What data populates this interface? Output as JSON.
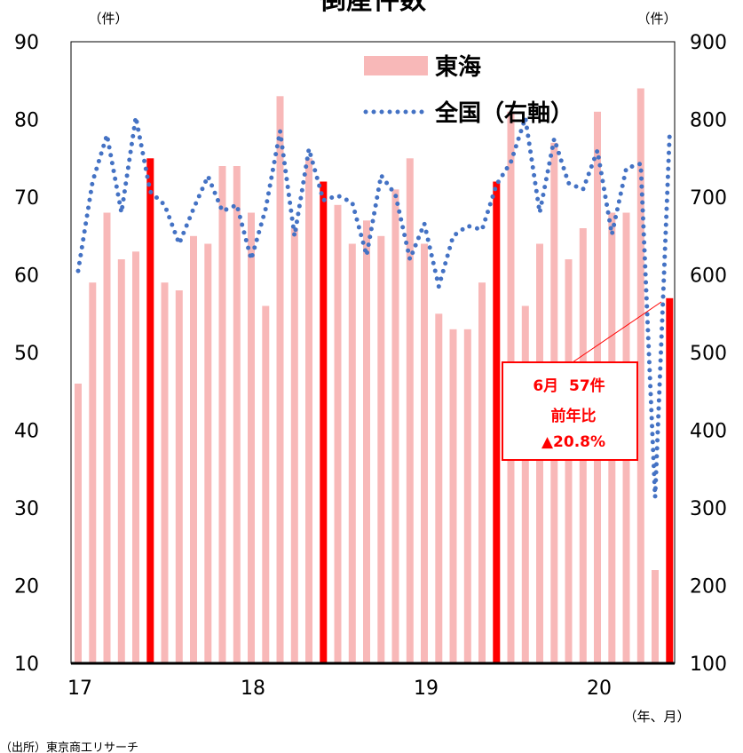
{
  "chart_data": {
    "type": "bar",
    "title": "倒産件数",
    "left_unit": "（件）",
    "right_unit": "（件）",
    "x_unit": "（年、月）",
    "source": "（出所）東京商工リサーチ",
    "x_tick_labels": [
      "17",
      "18",
      "19",
      "20"
    ],
    "y_left": {
      "min": 10,
      "max": 90,
      "ticks": [
        10,
        20,
        30,
        40,
        50,
        60,
        70,
        80,
        90
      ]
    },
    "y_right": {
      "min": 100,
      "max": 900,
      "ticks": [
        100,
        200,
        300,
        400,
        500,
        600,
        700,
        800,
        900
      ]
    },
    "categories": [
      "17-01",
      "17-02",
      "17-03",
      "17-04",
      "17-05",
      "17-06",
      "17-07",
      "17-08",
      "17-09",
      "17-10",
      "17-11",
      "17-12",
      "18-01",
      "18-02",
      "18-03",
      "18-04",
      "18-05",
      "18-06",
      "18-07",
      "18-08",
      "18-09",
      "18-10",
      "18-11",
      "18-12",
      "19-01",
      "19-02",
      "19-03",
      "19-04",
      "19-05",
      "19-06",
      "19-07",
      "19-08",
      "19-09",
      "19-10",
      "19-11",
      "19-12",
      "20-01",
      "20-02",
      "20-03",
      "20-04",
      "20-05",
      "20-06"
    ],
    "series": [
      {
        "name": "東海",
        "axis": "left",
        "style": "bar",
        "color": "#f8b8b8",
        "highlight_color": "#ff0000",
        "highlight_indices": [
          5,
          17,
          29,
          41
        ],
        "values": [
          46,
          59,
          68,
          62,
          63,
          75,
          59,
          58,
          65,
          64,
          74,
          74,
          68,
          56,
          83,
          66,
          75,
          72,
          69,
          64,
          67,
          65,
          71,
          75,
          64,
          55,
          53,
          53,
          59,
          72,
          81,
          56,
          64,
          77,
          62,
          66,
          81,
          68,
          68,
          84,
          22,
          57
        ]
      },
      {
        "name": "全国（右軸）",
        "axis": "right",
        "style": "dotted-line",
        "color": "#4472c4",
        "values": [
          605,
          720,
          780,
          680,
          803,
          707,
          690,
          640,
          685,
          727,
          682,
          690,
          620,
          685,
          785,
          650,
          762,
          696,
          702,
          693,
          625,
          728,
          703,
          620,
          666,
          585,
          650,
          663,
          658,
          716,
          745,
          802,
          680,
          775,
          718,
          710,
          760,
          652,
          737,
          743,
          314,
          780
        ]
      }
    ],
    "annotation": {
      "lines": [
        "6月  57件",
        "前年比",
        "▲20.8%"
      ],
      "target_index": 41,
      "color": "#ff0000"
    },
    "legend_position": "top-right",
    "grid": false
  }
}
